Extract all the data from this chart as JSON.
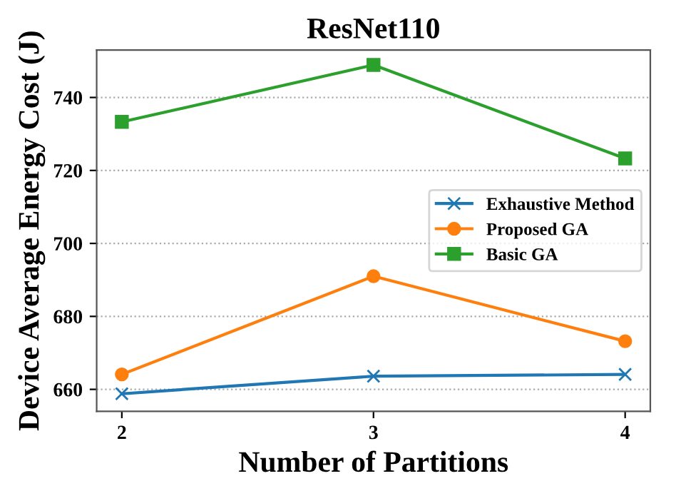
{
  "chart_data": {
    "type": "line",
    "title": "ResNet110",
    "xlabel": "Number of Partitions",
    "ylabel": "Device Average Energy Cost (J)",
    "x": [
      2,
      3,
      4
    ],
    "series": [
      {
        "name": "Exhaustive Method",
        "color": "#1f77b4",
        "marker": "cross",
        "values": [
          658.8,
          663.6,
          664.1
        ]
      },
      {
        "name": "Proposed GA",
        "color": "#ff7f0e",
        "marker": "circle",
        "values": [
          664.1,
          691.0,
          673.2
        ]
      },
      {
        "name": "Basic GA",
        "color": "#2ca02c",
        "marker": "square",
        "values": [
          733.3,
          748.9,
          723.3
        ]
      }
    ],
    "xlim": [
      1.9,
      4.1
    ],
    "ylim": [
      654,
      753
    ],
    "xticks": [
      2,
      3,
      4
    ],
    "yticks": [
      660,
      680,
      700,
      720,
      740
    ],
    "grid": "y",
    "legend": "center right",
    "line_style": "solid"
  }
}
